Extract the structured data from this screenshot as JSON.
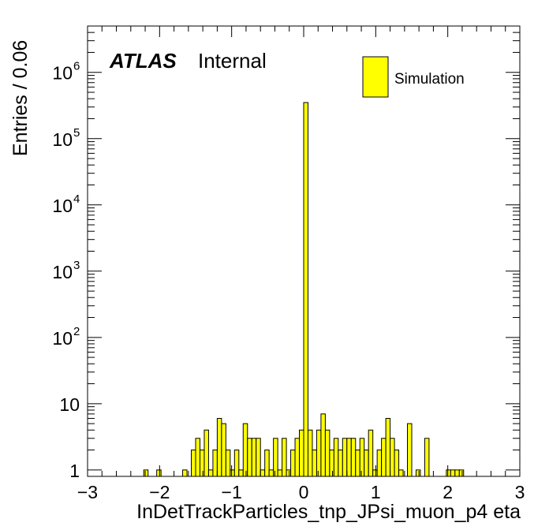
{
  "chart_data": {
    "type": "bar",
    "subtype": "histogram",
    "xlabel": "InDetTrackParticles_tnp_JPsi_muon_p4 eta",
    "ylabel": "Entries / 0.06",
    "xlim": [
      -3,
      3
    ],
    "ylim": [
      0.8,
      5000000
    ],
    "yscale": "log",
    "bin_width": 0.06,
    "x_ticks": [
      "−3",
      "−2",
      "−1",
      "0",
      "1",
      "2",
      "3"
    ],
    "x_tick_values": [
      -3,
      -2,
      -1,
      0,
      1,
      2,
      3
    ],
    "y_ticks": [
      {
        "value": 1,
        "base": "1",
        "exp": ""
      },
      {
        "value": 10,
        "base": "10",
        "exp": ""
      },
      {
        "value": 100,
        "base": "10",
        "exp": "2"
      },
      {
        "value": 1000,
        "base": "10",
        "exp": "3"
      },
      {
        "value": 10000,
        "base": "10",
        "exp": "4"
      },
      {
        "value": 100000,
        "base": "10",
        "exp": "5"
      },
      {
        "value": 1000000,
        "base": "10",
        "exp": "6"
      }
    ],
    "bins": [
      {
        "x": -2.22,
        "y": 1
      },
      {
        "x": -2.04,
        "y": 1
      },
      {
        "x": -1.68,
        "y": 1
      },
      {
        "x": -1.56,
        "y": 2
      },
      {
        "x": -1.5,
        "y": 3
      },
      {
        "x": -1.44,
        "y": 2
      },
      {
        "x": -1.38,
        "y": 4
      },
      {
        "x": -1.32,
        "y": 1
      },
      {
        "x": -1.26,
        "y": 2
      },
      {
        "x": -1.2,
        "y": 6
      },
      {
        "x": -1.14,
        "y": 5
      },
      {
        "x": -1.08,
        "y": 2
      },
      {
        "x": -1.02,
        "y": 1
      },
      {
        "x": -0.96,
        "y": 2
      },
      {
        "x": -0.9,
        "y": 1
      },
      {
        "x": -0.84,
        "y": 5
      },
      {
        "x": -0.78,
        "y": 3
      },
      {
        "x": -0.72,
        "y": 3
      },
      {
        "x": -0.66,
        "y": 3
      },
      {
        "x": -0.6,
        "y": 1
      },
      {
        "x": -0.54,
        "y": 2
      },
      {
        "x": -0.48,
        "y": 1
      },
      {
        "x": -0.42,
        "y": 3
      },
      {
        "x": -0.36,
        "y": 1
      },
      {
        "x": -0.3,
        "y": 3
      },
      {
        "x": -0.24,
        "y": 1
      },
      {
        "x": -0.18,
        "y": 2
      },
      {
        "x": -0.12,
        "y": 3
      },
      {
        "x": -0.06,
        "y": 4
      },
      {
        "x": 0.0,
        "y": 350000
      },
      {
        "x": 0.06,
        "y": 4
      },
      {
        "x": 0.12,
        "y": 2
      },
      {
        "x": 0.18,
        "y": 4
      },
      {
        "x": 0.24,
        "y": 7
      },
      {
        "x": 0.3,
        "y": 4
      },
      {
        "x": 0.36,
        "y": 2
      },
      {
        "x": 0.42,
        "y": 3
      },
      {
        "x": 0.48,
        "y": 2
      },
      {
        "x": 0.54,
        "y": 3
      },
      {
        "x": 0.6,
        "y": 3
      },
      {
        "x": 0.66,
        "y": 3
      },
      {
        "x": 0.72,
        "y": 2
      },
      {
        "x": 0.78,
        "y": 3
      },
      {
        "x": 0.84,
        "y": 2
      },
      {
        "x": 0.9,
        "y": 4
      },
      {
        "x": 0.96,
        "y": 1
      },
      {
        "x": 1.02,
        "y": 2
      },
      {
        "x": 1.08,
        "y": 3
      },
      {
        "x": 1.14,
        "y": 6
      },
      {
        "x": 1.2,
        "y": 3
      },
      {
        "x": 1.26,
        "y": 2
      },
      {
        "x": 1.32,
        "y": 1
      },
      {
        "x": 1.44,
        "y": 5
      },
      {
        "x": 1.56,
        "y": 1
      },
      {
        "x": 1.68,
        "y": 3
      },
      {
        "x": 1.98,
        "y": 1
      },
      {
        "x": 2.04,
        "y": 1
      },
      {
        "x": 2.1,
        "y": 1
      },
      {
        "x": 2.16,
        "y": 1
      }
    ],
    "legend": {
      "entries": [
        "Simulation"
      ],
      "placement": "top-right"
    },
    "bar_color": "#ffff00",
    "annotation": {
      "bold": "ATLAS",
      "text": "Internal"
    }
  }
}
